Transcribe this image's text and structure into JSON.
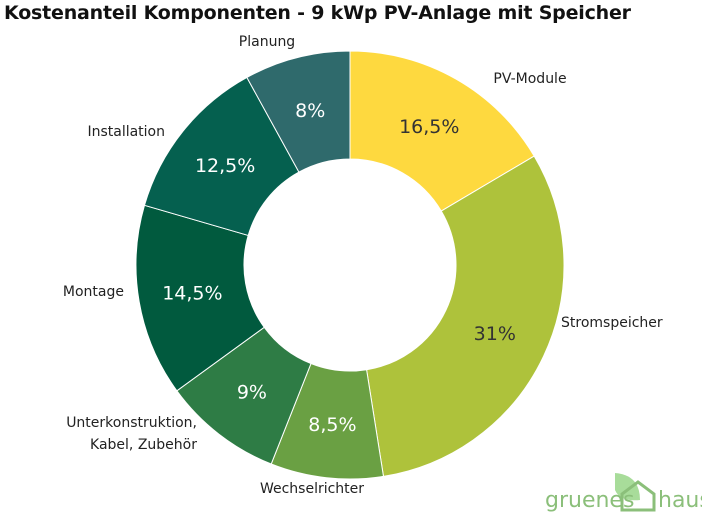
{
  "chart_data": {
    "type": "pie",
    "donut": true,
    "title": "Kostenanteil Komponenten - 9 kWp PV-Anlage mit Speicher",
    "start": "top, clockwise",
    "legend": "none (outer labels)",
    "categories": [
      "PV-Module",
      "Stromspeicher",
      "Wechselrichter",
      "Unterkonstruktion, Kabel, Zubehör",
      "Montage",
      "Installation",
      "Planung"
    ],
    "values": [
      16.5,
      31,
      8.5,
      9,
      14.5,
      12.5,
      8
    ],
    "data_labels": [
      "16,5%",
      "31%",
      "8,5%",
      "9%",
      "14,5%",
      "12,5%",
      "8%"
    ],
    "colors": [
      "#fed93f",
      "#aec23b",
      "#6aa043",
      "#2e7c45",
      "#015a3e",
      "#05604f",
      "#2f6a6c"
    ],
    "label_colors": [
      "#333333",
      "#333333",
      "#ffffff",
      "#ffffff",
      "#ffffff",
      "#ffffff",
      "#ffffff"
    ]
  },
  "logo": {
    "left": "gruenes",
    "right": "haus",
    "color": "#8bbf7a"
  }
}
